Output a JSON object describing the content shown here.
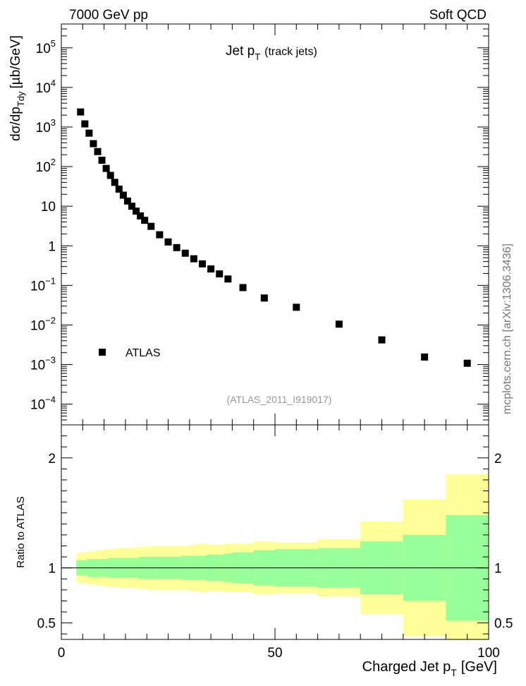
{
  "header": {
    "left": "7000 GeV pp",
    "right": "Soft QCD"
  },
  "side_label": "mcplots.cern.ch [arXiv:1306.3436]",
  "chart_data": [
    {
      "type": "scatter",
      "title": "Jet p_T (track jets)",
      "title_main": "Jet p",
      "title_sub": "T",
      "title_suffix": "(track jets)",
      "ylabel": "dσ/dp_Tdy [µb/GeV]",
      "ylabel_pre": "dσ/dp",
      "ylabel_sub": "Tdy",
      "ylabel_post": "[µb/GeV]",
      "yscale": "log",
      "ylim": [
        3e-05,
        400000
      ],
      "xlim": [
        0,
        100
      ],
      "yticks": [
        {
          "v": 100000,
          "base": "10",
          "exp": "5"
        },
        {
          "v": 10000,
          "base": "10",
          "exp": "4"
        },
        {
          "v": 1000,
          "base": "10",
          "exp": "3"
        },
        {
          "v": 100,
          "base": "10",
          "exp": "2"
        },
        {
          "v": 10,
          "base": "10",
          "exp": ""
        },
        {
          "v": 1,
          "base": "1",
          "exp": ""
        },
        {
          "v": 0.1,
          "base": "10",
          "exp": "−1"
        },
        {
          "v": 0.01,
          "base": "10",
          "exp": "−2"
        },
        {
          "v": 0.001,
          "base": "10",
          "exp": "−3"
        },
        {
          "v": 0.0001,
          "base": "10",
          "exp": "−4"
        }
      ],
      "legend": {
        "position": "lower-left",
        "entries": [
          "ATLAS"
        ]
      },
      "annotation": "(ATLAS_2011_I919017)",
      "series": [
        {
          "name": "ATLAS",
          "x": [
            4.5,
            5.5,
            6.5,
            7.5,
            8.5,
            9.5,
            10.5,
            11.5,
            12.5,
            13.5,
            14.5,
            15.5,
            16.5,
            17.5,
            18.5,
            19.5,
            21,
            23,
            25,
            27,
            29,
            31,
            33,
            35,
            37,
            39,
            42.5,
            47.5,
            55,
            65,
            75,
            85,
            95
          ],
          "y": [
            2400,
            1200,
            700,
            380,
            240,
            145,
            90,
            60,
            40,
            27,
            19,
            13.5,
            10,
            7.5,
            5.7,
            4.4,
            3.1,
            1.9,
            1.25,
            0.9,
            0.65,
            0.47,
            0.35,
            0.26,
            0.195,
            0.145,
            0.088,
            0.048,
            0.028,
            0.0105,
            0.0042,
            0.00155,
            0.00108
          ]
        }
      ]
    },
    {
      "type": "area",
      "ylabel": "Ratio to ATLAS",
      "xlabel": "Charged Jet p_T [GeV]",
      "xlabel_pre": "Charged Jet p",
      "xlabel_sub": "T",
      "xlabel_post": "[GeV]",
      "xlim": [
        0,
        100
      ],
      "ylim": [
        0.35,
        2.3
      ],
      "xticks": [
        0,
        50,
        100
      ],
      "yticks": [
        0.5,
        1,
        2
      ],
      "reference_line": 1,
      "colors": {
        "stat": "#99ff99",
        "total": "#ffff99"
      },
      "bands": [
        {
          "x0": 3.5,
          "x1": 4,
          "stat": 0.07,
          "total": 0.13
        },
        {
          "x0": 4,
          "x1": 5,
          "stat": 0.07,
          "total": 0.14
        },
        {
          "x0": 5,
          "x1": 6,
          "stat": 0.07,
          "total": 0.14
        },
        {
          "x0": 6,
          "x1": 7,
          "stat": 0.08,
          "total": 0.15
        },
        {
          "x0": 7,
          "x1": 8,
          "stat": 0.08,
          "total": 0.15
        },
        {
          "x0": 8,
          "x1": 9,
          "stat": 0.08,
          "total": 0.16
        },
        {
          "x0": 9,
          "x1": 10,
          "stat": 0.08,
          "total": 0.16
        },
        {
          "x0": 10,
          "x1": 11,
          "stat": 0.08,
          "total": 0.17
        },
        {
          "x0": 11,
          "x1": 12,
          "stat": 0.09,
          "total": 0.17
        },
        {
          "x0": 12,
          "x1": 13,
          "stat": 0.09,
          "total": 0.17
        },
        {
          "x0": 13,
          "x1": 14,
          "stat": 0.09,
          "total": 0.18
        },
        {
          "x0": 14,
          "x1": 15,
          "stat": 0.09,
          "total": 0.18
        },
        {
          "x0": 15,
          "x1": 16,
          "stat": 0.09,
          "total": 0.18
        },
        {
          "x0": 16,
          "x1": 17,
          "stat": 0.09,
          "total": 0.18
        },
        {
          "x0": 17,
          "x1": 18,
          "stat": 0.09,
          "total": 0.19
        },
        {
          "x0": 18,
          "x1": 19,
          "stat": 0.1,
          "total": 0.19
        },
        {
          "x0": 19,
          "x1": 20,
          "stat": 0.1,
          "total": 0.19
        },
        {
          "x0": 20,
          "x1": 22,
          "stat": 0.1,
          "total": 0.2
        },
        {
          "x0": 22,
          "x1": 24,
          "stat": 0.1,
          "total": 0.2
        },
        {
          "x0": 24,
          "x1": 26,
          "stat": 0.1,
          "total": 0.2
        },
        {
          "x0": 26,
          "x1": 28,
          "stat": 0.1,
          "total": 0.2
        },
        {
          "x0": 28,
          "x1": 30,
          "stat": 0.11,
          "total": 0.2
        },
        {
          "x0": 30,
          "x1": 32,
          "stat": 0.11,
          "total": 0.21
        },
        {
          "x0": 32,
          "x1": 34,
          "stat": 0.11,
          "total": 0.22
        },
        {
          "x0": 34,
          "x1": 36,
          "stat": 0.12,
          "total": 0.21
        },
        {
          "x0": 36,
          "x1": 38,
          "stat": 0.12,
          "total": 0.21
        },
        {
          "x0": 38,
          "x1": 40,
          "stat": 0.13,
          "total": 0.22
        },
        {
          "x0": 40,
          "x1": 45,
          "stat": 0.14,
          "total": 0.22
        },
        {
          "x0": 45,
          "x1": 50,
          "stat": 0.16,
          "total": 0.24
        },
        {
          "x0": 50,
          "x1": 60,
          "stat": 0.17,
          "total": 0.23
        },
        {
          "x0": 60,
          "x1": 70,
          "stat": 0.18,
          "total": 0.26
        },
        {
          "x0": 70,
          "x1": 80,
          "stat": 0.24,
          "total": 0.42
        },
        {
          "x0": 80,
          "x1": 90,
          "stat": 0.3,
          "total": 0.62
        },
        {
          "x0": 90,
          "x1": 100,
          "stat": 0.48,
          "total": 0.85
        }
      ]
    }
  ]
}
